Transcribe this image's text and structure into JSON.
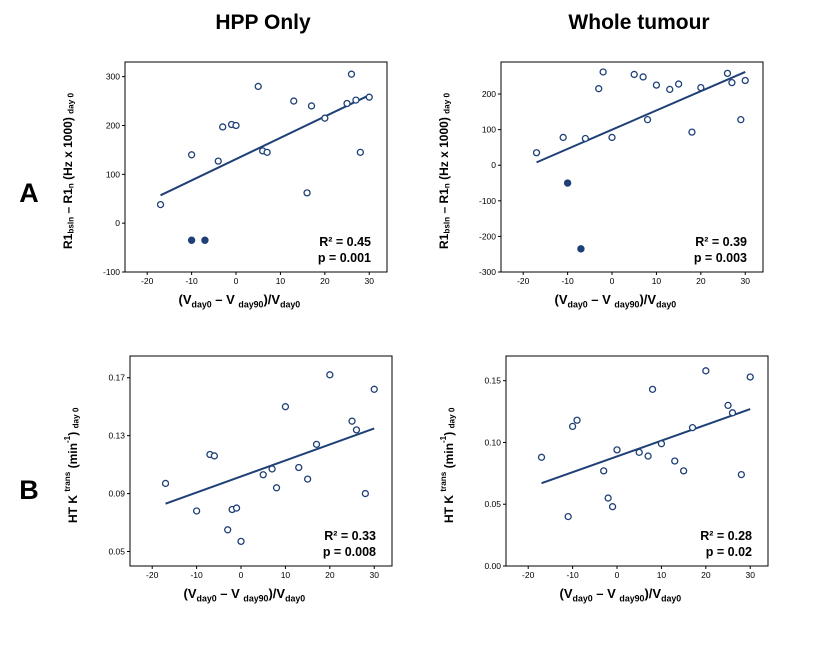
{
  "headers": [
    "HPP Only",
    "Whole tumour"
  ],
  "panel_labels": [
    "A",
    "B"
  ],
  "colors": {
    "accent": "#1f4077",
    "axis": "#000000",
    "background": "#ffffff"
  },
  "chart_data": [
    {
      "type": "scatter",
      "panel": "A",
      "column": "HPP Only",
      "xlim": [
        -25,
        34
      ],
      "ylim": [
        -100,
        330
      ],
      "x_ticks": [
        {
          "v": -20,
          "l": "-20"
        },
        {
          "v": -10,
          "l": "-10"
        },
        {
          "v": 0,
          "l": "0"
        },
        {
          "v": 10,
          "l": "10"
        },
        {
          "v": 20,
          "l": "20"
        },
        {
          "v": 30,
          "l": "30"
        }
      ],
      "y_ticks": [
        {
          "v": -100,
          "l": "-100"
        },
        {
          "v": 0,
          "l": "0"
        },
        {
          "v": 100,
          "l": "100"
        },
        {
          "v": 200,
          "l": "200"
        },
        {
          "v": 300,
          "l": "300"
        }
      ],
      "points": [
        [
          -17,
          38
        ],
        [
          -10,
          140
        ],
        [
          -4,
          127
        ],
        [
          -3,
          197
        ],
        [
          -1,
          202
        ],
        [
          0,
          200
        ],
        [
          5,
          280
        ],
        [
          6,
          148
        ],
        [
          7,
          145
        ],
        [
          13,
          250
        ],
        [
          16,
          62
        ],
        [
          17,
          240
        ],
        [
          20,
          215
        ],
        [
          25,
          245
        ],
        [
          26,
          305
        ],
        [
          27,
          252
        ],
        [
          28,
          145
        ],
        [
          30,
          258
        ]
      ],
      "filled_points": [
        [
          -10,
          -35
        ],
        [
          -7,
          -35
        ]
      ],
      "trendline": {
        "x": [
          -17,
          30
        ],
        "y": [
          57,
          262
        ]
      },
      "annotation": [
        "R² = 0.45",
        "p = 0.001"
      ],
      "xlabel_segments": [
        {
          "t": "(V"
        },
        {
          "t": "day0",
          "s": "sub"
        },
        {
          "t": " – V "
        },
        {
          "t": "day90",
          "s": "sub"
        },
        {
          "t": ")/V"
        },
        {
          "t": "day0",
          "s": "sub"
        }
      ],
      "ylabel_segments": [
        {
          "t": "R1"
        },
        {
          "t": "bsln",
          "s": "sub"
        },
        {
          "t": " – R1"
        },
        {
          "t": "n",
          "s": "sub"
        },
        {
          "t": " (Hz x 1000) "
        },
        {
          "t": "day 0",
          "s": "sub"
        }
      ]
    },
    {
      "type": "scatter",
      "panel": "A",
      "column": "Whole tumour",
      "xlim": [
        -25,
        34
      ],
      "ylim": [
        -300,
        290
      ],
      "x_ticks": [
        {
          "v": -20,
          "l": "-20"
        },
        {
          "v": -10,
          "l": "-10"
        },
        {
          "v": 0,
          "l": "0"
        },
        {
          "v": 10,
          "l": "10"
        },
        {
          "v": 20,
          "l": "20"
        },
        {
          "v": 30,
          "l": "30"
        }
      ],
      "y_ticks": [
        {
          "v": -300,
          "l": "-300"
        },
        {
          "v": -200,
          "l": "-200"
        },
        {
          "v": -100,
          "l": "-100"
        },
        {
          "v": 0,
          "l": "0"
        },
        {
          "v": 100,
          "l": "100"
        },
        {
          "v": 200,
          "l": "200"
        }
      ],
      "points": [
        [
          -17,
          35
        ],
        [
          -11,
          78
        ],
        [
          -6,
          75
        ],
        [
          -3,
          215
        ],
        [
          -2,
          262
        ],
        [
          0,
          78
        ],
        [
          5,
          255
        ],
        [
          7,
          248
        ],
        [
          8,
          128
        ],
        [
          10,
          225
        ],
        [
          13,
          213
        ],
        [
          15,
          228
        ],
        [
          18,
          93
        ],
        [
          20,
          218
        ],
        [
          26,
          258
        ],
        [
          27,
          232
        ],
        [
          29,
          128
        ],
        [
          30,
          238
        ]
      ],
      "filled_points": [
        [
          -10,
          -50
        ],
        [
          -7,
          -235
        ]
      ],
      "trendline": {
        "x": [
          -17,
          30
        ],
        "y": [
          8,
          262
        ]
      },
      "annotation": [
        "R² = 0.39",
        "p = 0.003"
      ],
      "xlabel_segments": [
        {
          "t": "(V"
        },
        {
          "t": "day0",
          "s": "sub"
        },
        {
          "t": " – V "
        },
        {
          "t": "day90",
          "s": "sub"
        },
        {
          "t": ")/V"
        },
        {
          "t": "day0",
          "s": "sub"
        }
      ],
      "ylabel_segments": [
        {
          "t": "R1"
        },
        {
          "t": "bsln",
          "s": "sub"
        },
        {
          "t": " – R1"
        },
        {
          "t": "n",
          "s": "sub"
        },
        {
          "t": " (Hz x 1000) "
        },
        {
          "t": "day 0",
          "s": "sub"
        }
      ]
    },
    {
      "type": "scatter",
      "panel": "B",
      "column": "HPP Only",
      "xlim": [
        -25,
        34
      ],
      "ylim": [
        0.04,
        0.185
      ],
      "x_ticks": [
        {
          "v": -20,
          "l": "-20"
        },
        {
          "v": -10,
          "l": "-10"
        },
        {
          "v": 0,
          "l": "0"
        },
        {
          "v": 10,
          "l": "10"
        },
        {
          "v": 20,
          "l": "20"
        },
        {
          "v": 30,
          "l": "30"
        }
      ],
      "y_ticks": [
        {
          "v": 0.05,
          "l": "0.05"
        },
        {
          "v": 0.09,
          "l": "0.09"
        },
        {
          "v": 0.13,
          "l": "0.13"
        },
        {
          "v": 0.17,
          "l": "0.17"
        }
      ],
      "points": [
        [
          -17,
          0.097
        ],
        [
          -10,
          0.078
        ],
        [
          -7,
          0.117
        ],
        [
          -6,
          0.116
        ],
        [
          -3,
          0.065
        ],
        [
          -2,
          0.079
        ],
        [
          -1,
          0.08
        ],
        [
          0,
          0.057
        ],
        [
          5,
          0.103
        ],
        [
          7,
          0.107
        ],
        [
          8,
          0.094
        ],
        [
          10,
          0.15
        ],
        [
          13,
          0.108
        ],
        [
          15,
          0.1
        ],
        [
          17,
          0.124
        ],
        [
          20,
          0.172
        ],
        [
          25,
          0.14
        ],
        [
          26,
          0.134
        ],
        [
          28,
          0.09
        ],
        [
          30,
          0.162
        ]
      ],
      "filled_points": [],
      "trendline": {
        "x": [
          -17,
          30
        ],
        "y": [
          0.083,
          0.135
        ]
      },
      "annotation": [
        "R² = 0.33",
        "p = 0.008"
      ],
      "xlabel_segments": [
        {
          "t": "(V"
        },
        {
          "t": "day0",
          "s": "sub"
        },
        {
          "t": " – V "
        },
        {
          "t": "day90",
          "s": "sub"
        },
        {
          "t": ")/V"
        },
        {
          "t": "day0",
          "s": "sub"
        }
      ],
      "ylabel_segments": [
        {
          "t": "HT K "
        },
        {
          "t": "trans",
          "s": "sup"
        },
        {
          "t": " (min"
        },
        {
          "t": "-1",
          "s": "sup"
        },
        {
          "t": ") "
        },
        {
          "t": "day 0",
          "s": "sub"
        }
      ]
    },
    {
      "type": "scatter",
      "panel": "B",
      "column": "Whole tumour",
      "xlim": [
        -25,
        34
      ],
      "ylim": [
        0.0,
        0.17
      ],
      "x_ticks": [
        {
          "v": -20,
          "l": "-20"
        },
        {
          "v": -10,
          "l": "-10"
        },
        {
          "v": 0,
          "l": "0"
        },
        {
          "v": 10,
          "l": "10"
        },
        {
          "v": 20,
          "l": "20"
        },
        {
          "v": 30,
          "l": "30"
        }
      ],
      "y_ticks": [
        {
          "v": 0.0,
          "l": "0.00"
        },
        {
          "v": 0.05,
          "l": "0.05"
        },
        {
          "v": 0.1,
          "l": "0.10"
        },
        {
          "v": 0.15,
          "l": "0.15"
        }
      ],
      "points": [
        [
          -17,
          0.088
        ],
        [
          -11,
          0.04
        ],
        [
          -10,
          0.113
        ],
        [
          -9,
          0.118
        ],
        [
          -3,
          0.077
        ],
        [
          -2,
          0.055
        ],
        [
          -1,
          0.048
        ],
        [
          0,
          0.094
        ],
        [
          5,
          0.092
        ],
        [
          7,
          0.089
        ],
        [
          8,
          0.143
        ],
        [
          10,
          0.099
        ],
        [
          13,
          0.085
        ],
        [
          15,
          0.077
        ],
        [
          17,
          0.112
        ],
        [
          20,
          0.158
        ],
        [
          25,
          0.13
        ],
        [
          26,
          0.124
        ],
        [
          28,
          0.074
        ],
        [
          30,
          0.153
        ]
      ],
      "filled_points": [],
      "trendline": {
        "x": [
          -17,
          30
        ],
        "y": [
          0.067,
          0.127
        ]
      },
      "annotation": [
        "R² = 0.28",
        "p = 0.02"
      ],
      "xlabel_segments": [
        {
          "t": "(V"
        },
        {
          "t": "day0",
          "s": "sub"
        },
        {
          "t": " – V "
        },
        {
          "t": "day90",
          "s": "sub"
        },
        {
          "t": ")/V"
        },
        {
          "t": "day0",
          "s": "sub"
        }
      ],
      "ylabel_segments": [
        {
          "t": "HT K "
        },
        {
          "t": "trans",
          "s": "sup"
        },
        {
          "t": " (min"
        },
        {
          "t": "-1",
          "s": "sup"
        },
        {
          "t": ") "
        },
        {
          "t": "day 0",
          "s": "sub"
        }
      ]
    }
  ]
}
